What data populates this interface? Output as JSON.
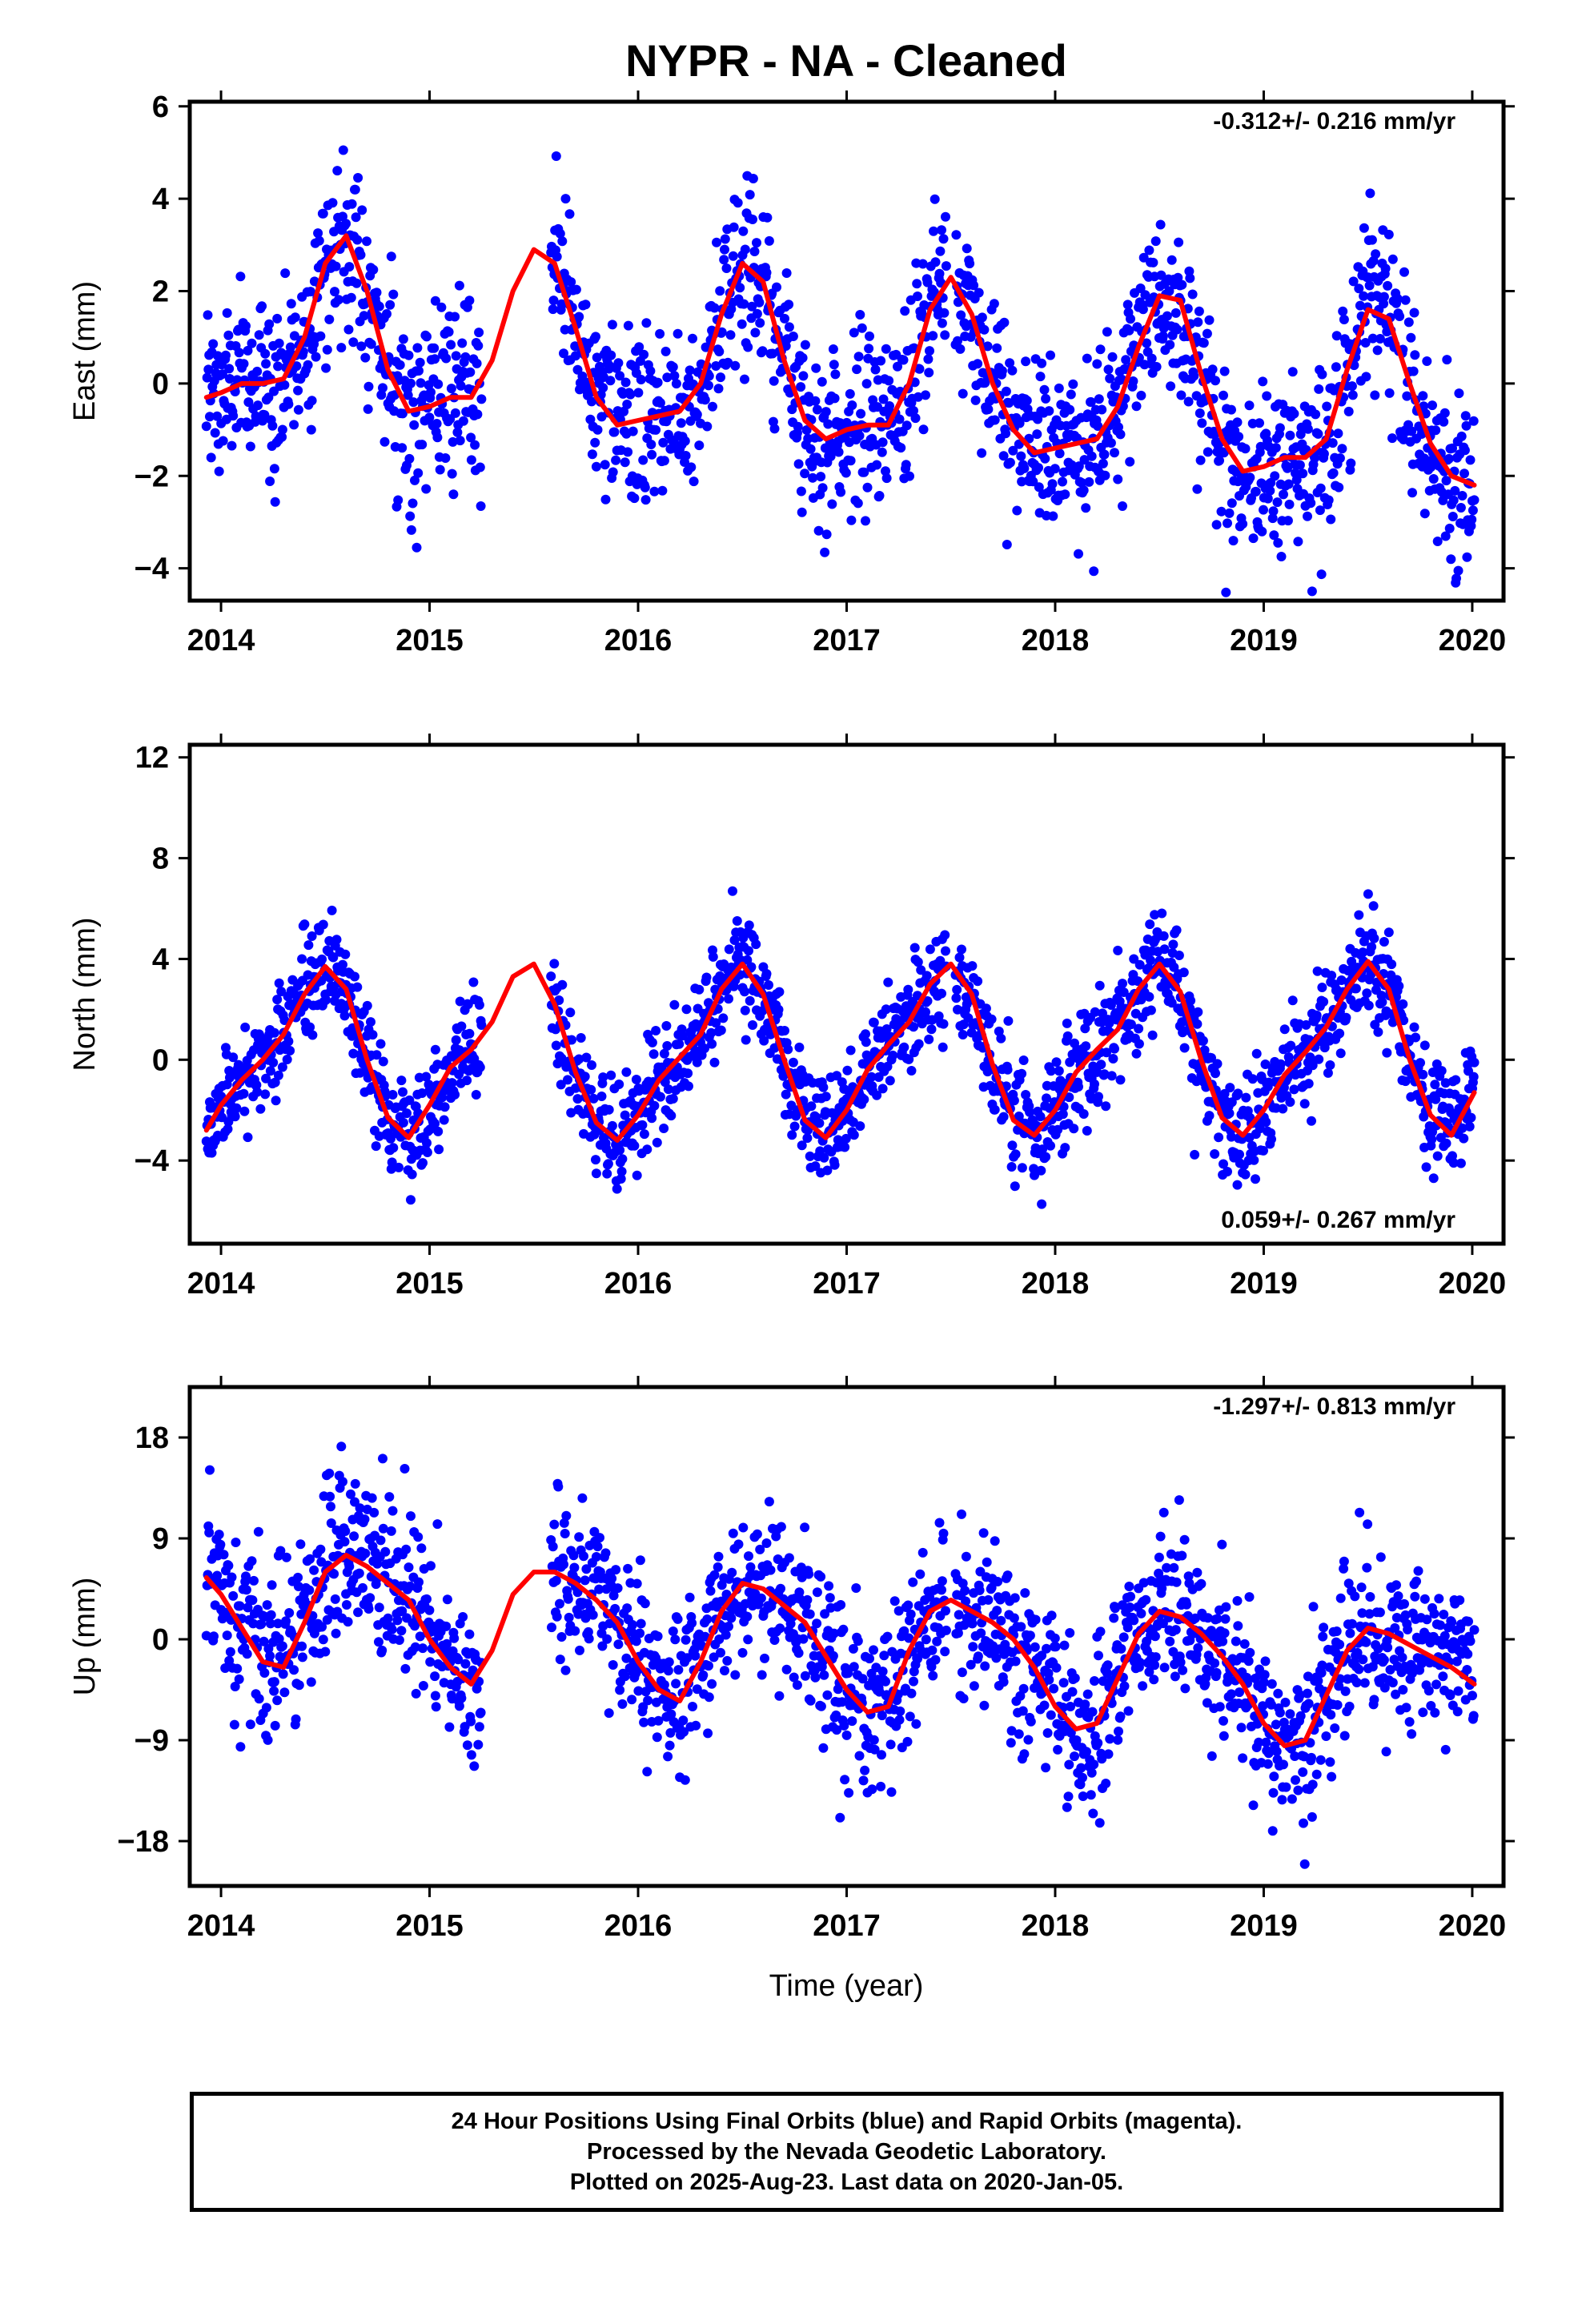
{
  "title": "NYPR  - NA - Cleaned",
  "xlabel": "Time (year)",
  "colors": {
    "points": "#0000ff",
    "fit": "#ff0000",
    "axes": "#000000"
  },
  "footer": {
    "line1": "24 Hour Positions Using Final Orbits (blue) and Rapid Orbits (magenta).",
    "line2": "Processed by the Nevada Geodetic Laboratory.",
    "line3": "Plotted on 2025-Aug-23. Last data on 2020-Jan-05."
  },
  "chart_data": [
    {
      "type": "scatter",
      "ylabel": "East (mm)",
      "rate": "-0.312+/- 0.216 mm/yr",
      "rate_position": "top-right",
      "xlim": [
        2013.85,
        2020.15
      ],
      "ylim": [
        -4.7,
        6.1
      ],
      "yticks": [
        -4,
        -2,
        0,
        2,
        4,
        6
      ],
      "xticks": [
        2014,
        2015,
        2016,
        2017,
        2018,
        2019,
        2020
      ],
      "grid": false,
      "series": [
        {
          "kind": "points",
          "data_start": 2013.93,
          "data_end": 2020.01,
          "gaps": [
            [
              2015.25,
              2015.58
            ],
            [
              2017.48,
              2017.52
            ]
          ],
          "approx_count": 1900,
          "noise_sd": 0.95
        },
        {
          "kind": "fit_curve",
          "x": [
            2013.93,
            2014.0,
            2014.1,
            2014.2,
            2014.3,
            2014.4,
            2014.5,
            2014.6,
            2014.7,
            2014.8,
            2014.9,
            2015.0,
            2015.1,
            2015.2,
            2015.3,
            2015.4,
            2015.5,
            2015.6,
            2015.7,
            2015.8,
            2015.9,
            2016.0,
            2016.1,
            2016.2,
            2016.3,
            2016.4,
            2016.5,
            2016.6,
            2016.7,
            2016.8,
            2016.9,
            2017.0,
            2017.1,
            2017.2,
            2017.3,
            2017.4,
            2017.5,
            2017.6,
            2017.7,
            2017.8,
            2017.9,
            2018.0,
            2018.1,
            2018.2,
            2018.3,
            2018.4,
            2018.5,
            2018.6,
            2018.7,
            2018.8,
            2018.9,
            2019.0,
            2019.1,
            2019.2,
            2019.3,
            2019.4,
            2019.5,
            2019.6,
            2019.7,
            2019.8,
            2019.9,
            2020.01
          ],
          "y": [
            -0.3,
            -0.2,
            0.0,
            0.0,
            0.1,
            1.0,
            2.6,
            3.2,
            2.0,
            0.3,
            -0.6,
            -0.5,
            -0.3,
            -0.3,
            0.5,
            2.0,
            2.9,
            2.6,
            1.2,
            -0.3,
            -0.9,
            -0.8,
            -0.7,
            -0.6,
            0.0,
            1.5,
            2.6,
            2.2,
            0.5,
            -0.8,
            -1.2,
            -1.0,
            -0.9,
            -0.9,
            0.0,
            1.6,
            2.3,
            1.5,
            0.0,
            -1.0,
            -1.5,
            -1.4,
            -1.3,
            -1.2,
            -0.5,
            0.8,
            1.9,
            1.8,
            0.2,
            -1.2,
            -1.9,
            -1.8,
            -1.6,
            -1.6,
            -1.2,
            0.3,
            1.6,
            1.4,
            0.0,
            -1.3,
            -2.0,
            -2.2
          ]
        }
      ]
    },
    {
      "type": "scatter",
      "ylabel": "North (mm)",
      "rate": "0.059+/- 0.267 mm/yr",
      "rate_position": "bottom-right",
      "xlim": [
        2013.85,
        2020.15
      ],
      "ylim": [
        -7.3,
        12.5
      ],
      "yticks": [
        -4,
        0,
        4,
        8,
        12
      ],
      "xticks": [
        2014,
        2015,
        2016,
        2017,
        2018,
        2019,
        2020
      ],
      "grid": false,
      "series": [
        {
          "kind": "points",
          "data_start": 2013.93,
          "data_end": 2020.01,
          "gaps": [
            [
              2015.25,
              2015.58
            ],
            [
              2017.48,
              2017.52
            ]
          ],
          "approx_count": 1900,
          "noise_sd": 1.05
        },
        {
          "kind": "fit_curve",
          "x": [
            2013.93,
            2014.0,
            2014.1,
            2014.2,
            2014.3,
            2014.4,
            2014.5,
            2014.6,
            2014.7,
            2014.8,
            2014.9,
            2015.0,
            2015.1,
            2015.2,
            2015.3,
            2015.4,
            2015.5,
            2015.6,
            2015.7,
            2015.8,
            2015.9,
            2016.0,
            2016.1,
            2016.2,
            2016.3,
            2016.4,
            2016.5,
            2016.6,
            2016.7,
            2016.8,
            2016.9,
            2017.0,
            2017.1,
            2017.2,
            2017.3,
            2017.4,
            2017.5,
            2017.6,
            2017.7,
            2017.8,
            2017.9,
            2018.0,
            2018.1,
            2018.2,
            2018.3,
            2018.4,
            2018.5,
            2018.6,
            2018.7,
            2018.8,
            2018.9,
            2019.0,
            2019.1,
            2019.2,
            2019.3,
            2019.4,
            2019.5,
            2019.6,
            2019.7,
            2019.8,
            2019.9,
            2020.01
          ],
          "y": [
            -2.8,
            -1.8,
            -0.8,
            0.0,
            1.0,
            2.6,
            3.7,
            2.8,
            0.0,
            -2.3,
            -3.1,
            -1.8,
            -0.3,
            0.4,
            1.5,
            3.3,
            3.8,
            2.2,
            -0.5,
            -2.5,
            -3.2,
            -2.2,
            -0.8,
            0.1,
            1.0,
            2.8,
            3.8,
            2.6,
            0.0,
            -2.4,
            -3.1,
            -2.0,
            -0.4,
            0.6,
            1.5,
            3.0,
            3.8,
            2.6,
            -0.2,
            -2.4,
            -3.0,
            -2.0,
            -0.5,
            0.4,
            1.2,
            2.8,
            3.8,
            2.7,
            0.0,
            -2.3,
            -3.0,
            -2.0,
            -0.6,
            0.3,
            1.3,
            2.8,
            3.9,
            2.8,
            0.0,
            -2.2,
            -3.0,
            -1.3
          ]
        }
      ]
    },
    {
      "type": "scatter",
      "ylabel": "Up (mm)",
      "rate": "-1.297+/- 0.813 mm/yr",
      "rate_position": "top-right",
      "xlim": [
        2013.85,
        2020.15
      ],
      "ylim": [
        -22.0,
        22.5
      ],
      "yticks": [
        -18,
        -9,
        0,
        9,
        18
      ],
      "xticks": [
        2014,
        2015,
        2016,
        2017,
        2018,
        2019,
        2020
      ],
      "grid": false,
      "series": [
        {
          "kind": "points",
          "data_start": 2013.93,
          "data_end": 2020.01,
          "gaps": [
            [
              2015.25,
              2015.58
            ],
            [
              2017.48,
              2017.52
            ]
          ],
          "approx_count": 1900,
          "noise_sd": 3.8
        },
        {
          "kind": "fit_curve",
          "x": [
            2013.93,
            2014.0,
            2014.1,
            2014.2,
            2014.3,
            2014.4,
            2014.5,
            2014.6,
            2014.7,
            2014.8,
            2014.9,
            2015.0,
            2015.1,
            2015.2,
            2015.3,
            2015.4,
            2015.5,
            2015.6,
            2015.7,
            2015.8,
            2015.9,
            2016.0,
            2016.1,
            2016.2,
            2016.3,
            2016.4,
            2016.5,
            2016.6,
            2016.7,
            2016.8,
            2016.9,
            2017.0,
            2017.1,
            2017.2,
            2017.3,
            2017.4,
            2017.5,
            2017.6,
            2017.7,
            2017.8,
            2017.9,
            2018.0,
            2018.1,
            2018.2,
            2018.3,
            2018.4,
            2018.5,
            2018.6,
            2018.7,
            2018.8,
            2018.9,
            2019.0,
            2019.1,
            2019.2,
            2019.3,
            2019.4,
            2019.5,
            2019.6,
            2019.7,
            2019.8,
            2019.9,
            2020.01
          ],
          "y": [
            5.5,
            4.0,
            1.0,
            -2.0,
            -2.5,
            1.5,
            6.0,
            7.5,
            6.5,
            5.0,
            3.5,
            0.0,
            -2.5,
            -4.0,
            -1.0,
            4.0,
            6.0,
            6.0,
            5.0,
            3.5,
            1.5,
            -2.0,
            -4.5,
            -5.5,
            -2.0,
            2.5,
            5.0,
            4.5,
            3.0,
            1.5,
            -1.5,
            -4.5,
            -6.5,
            -6.0,
            -1.0,
            2.5,
            3.5,
            2.5,
            1.5,
            0.0,
            -2.5,
            -6.0,
            -8.0,
            -7.5,
            -3.5,
            0.5,
            2.5,
            2.0,
            0.5,
            -1.5,
            -4.0,
            -7.5,
            -9.5,
            -9.0,
            -5.0,
            -1.0,
            1.0,
            0.5,
            -0.5,
            -1.5,
            -2.5,
            -4.0
          ]
        }
      ]
    }
  ]
}
